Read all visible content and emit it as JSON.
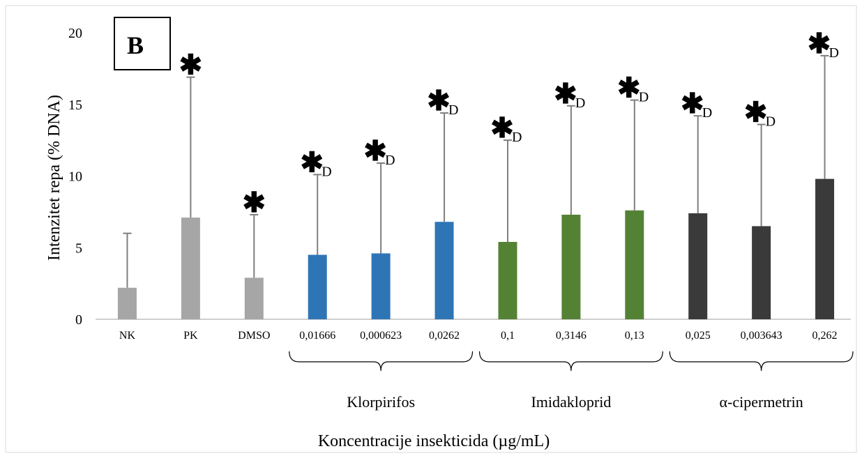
{
  "panel_label": "B",
  "chart_data": {
    "type": "bar",
    "categories": [
      "NK",
      "PK",
      "DMSO",
      "0,01666",
      "0,000623",
      "0,0262",
      "0,1",
      "0,3146",
      "0,13",
      "0,025",
      "0,003643",
      "0,262"
    ],
    "values": [
      2.2,
      7.1,
      2.9,
      4.5,
      4.6,
      6.8,
      5.4,
      7.3,
      7.6,
      7.4,
      6.5,
      9.8
    ],
    "error_upper": [
      6.0,
      16.9,
      7.3,
      10.1,
      10.9,
      14.4,
      12.5,
      14.9,
      15.3,
      14.2,
      13.6,
      18.4
    ],
    "bar_colors": [
      "#a6a6a6",
      "#a6a6a6",
      "#a6a6a6",
      "#2e75b6",
      "#2e75b6",
      "#2e75b6",
      "#548235",
      "#548235",
      "#548235",
      "#3a3a3a",
      "#3a3a3a",
      "#3a3a3a"
    ],
    "error_color": "#7f7f7f",
    "annotations": [
      "",
      "*",
      "*",
      "*D",
      "*D",
      "*D",
      "*D",
      "*D",
      "*D",
      "*D",
      "*D",
      "*D"
    ],
    "groups": [
      {
        "name": "Klorpirifos",
        "from": 3,
        "to": 5
      },
      {
        "name": "Imidakloprid",
        "from": 6,
        "to": 8
      },
      {
        "name": "α-cipermetrin",
        "from": 9,
        "to": 11
      }
    ],
    "ylabel": "Intenzitet repa (% DNA)",
    "xlabel": "Koncentracije insekticida (µg/mL)",
    "ylim": [
      0,
      20
    ],
    "yticks": [
      0,
      5,
      10,
      15,
      20
    ],
    "grid": false,
    "legend": "none"
  }
}
